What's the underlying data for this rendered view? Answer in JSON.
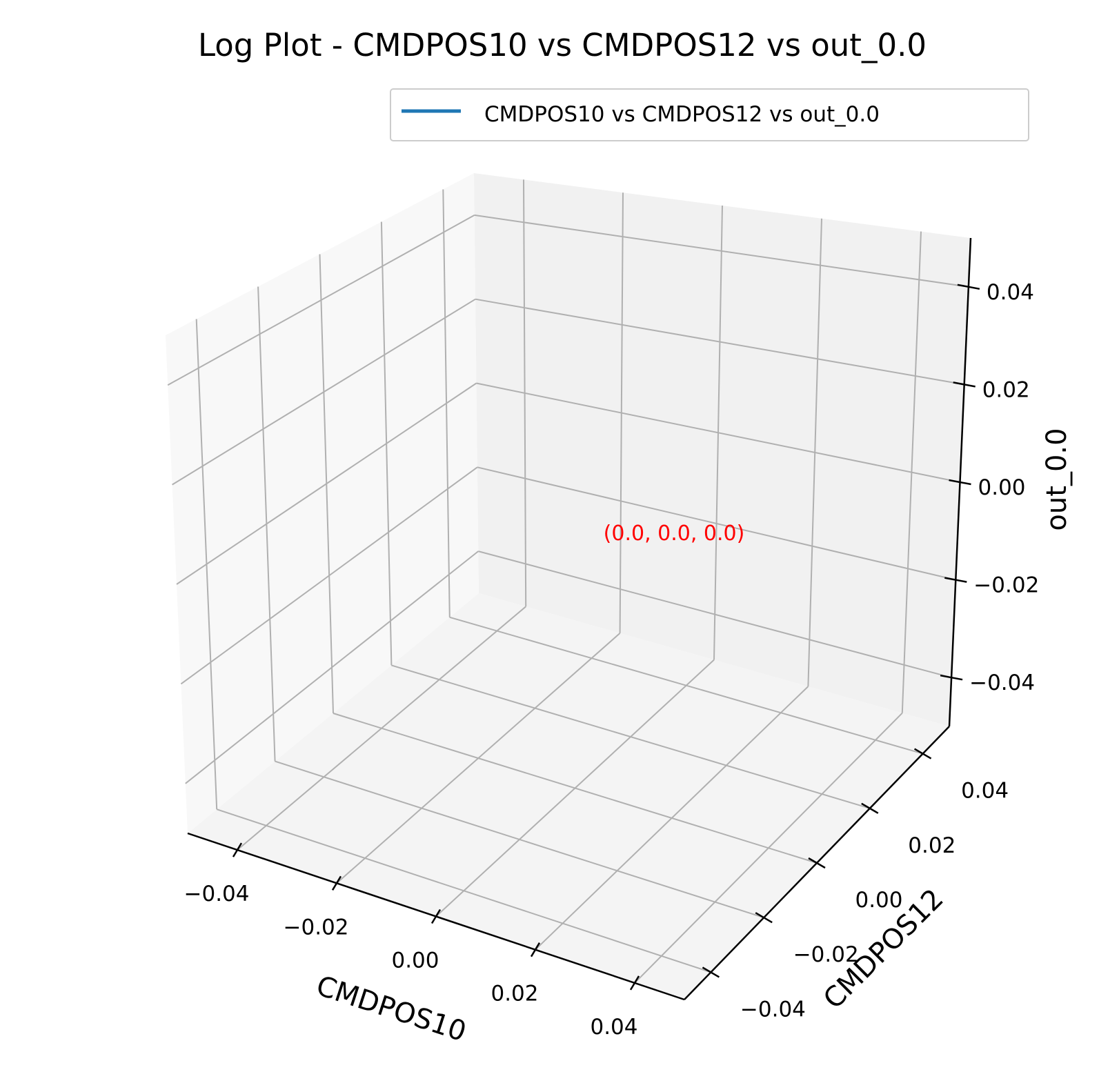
{
  "chart_data": {
    "type": "line",
    "projection": "3d",
    "title": "Log Plot - CMDPOS10 vs CMDPOS12 vs out_0.0",
    "xlabel": "CMDPOS10",
    "ylabel": "CMDPOS12",
    "zlabel": "out_0.0",
    "xlim": [
      -0.05,
      0.05
    ],
    "ylim": [
      -0.05,
      0.05
    ],
    "zlim": [
      -0.05,
      0.05
    ],
    "x_ticks": [
      "−0.04",
      "−0.02",
      "0.00",
      "0.02",
      "0.04"
    ],
    "y_ticks": [
      "−0.04",
      "−0.02",
      "0.00",
      "0.02",
      "0.04"
    ],
    "z_ticks": [
      "−0.04",
      "−0.02",
      "0.00",
      "0.02",
      "0.04"
    ],
    "grid": true,
    "legend_position": "top-right",
    "series": [
      {
        "name": "CMDPOS10 vs CMDPOS12 vs out_0.0",
        "color": "#1f77b4",
        "x": [
          0.0
        ],
        "y": [
          0.0
        ],
        "z": [
          0.0
        ]
      }
    ],
    "annotations": [
      {
        "text": "(0.0, 0.0, 0.0)",
        "x": 0.0,
        "y": 0.0,
        "z": 0.0,
        "color": "#ff0000"
      }
    ]
  }
}
